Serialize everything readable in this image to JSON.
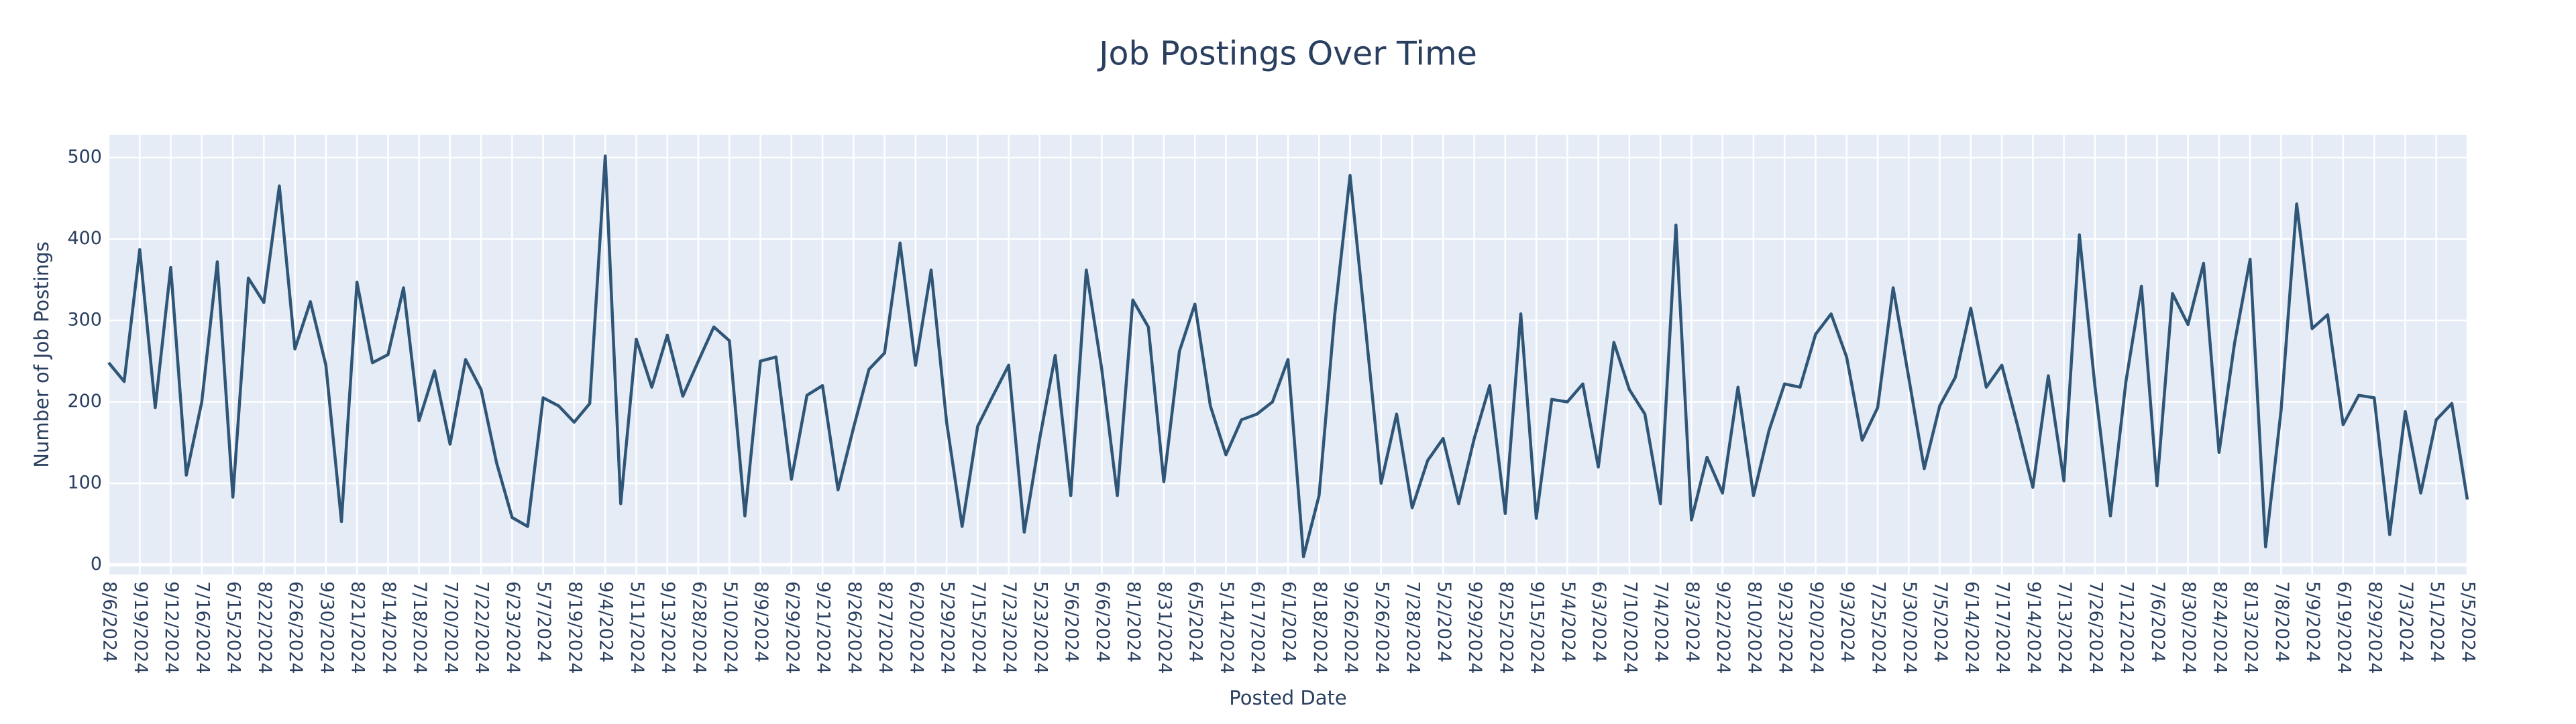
{
  "chart_data": {
    "type": "line",
    "title": "Job Postings Over Time",
    "x_label": "Posted Date",
    "y_label": "Number of Job Postings",
    "color": "#2f5577",
    "grid": true,
    "categories": [
      "8/6/2024",
      null,
      "9/19/2024",
      null,
      "9/12/2024",
      null,
      "7/16/2024",
      null,
      "6/15/2024",
      null,
      "8/22/2024",
      null,
      "6/26/2024",
      null,
      "9/30/2024",
      null,
      "8/21/2024",
      null,
      "8/14/2024",
      null,
      "7/18/2024",
      null,
      "7/20/2024",
      null,
      "7/22/2024",
      null,
      "6/23/2024",
      null,
      "5/7/2024",
      null,
      "8/19/2024",
      null,
      "9/4/2024",
      null,
      "5/11/2024",
      null,
      "9/13/2024",
      null,
      "6/28/2024",
      null,
      "5/10/2024",
      null,
      "8/9/2024",
      null,
      "6/29/2024",
      null,
      "9/21/2024",
      null,
      "8/26/2024",
      null,
      "8/27/2024",
      null,
      "6/20/2024",
      null,
      "5/29/2024",
      null,
      "7/15/2024",
      null,
      "7/23/2024",
      null,
      "5/23/2024",
      null,
      "5/6/2024",
      null,
      "6/6/2024",
      null,
      "8/1/2024",
      null,
      "8/31/2024",
      null,
      "6/5/2024",
      null,
      "5/14/2024",
      null,
      "6/17/2024",
      null,
      "6/1/2024",
      null,
      "8/18/2024",
      null,
      "9/26/2024",
      null,
      "5/26/2024",
      null,
      "7/28/2024",
      null,
      "5/2/2024",
      null,
      "9/29/2024",
      null,
      "8/25/2024",
      null,
      "9/15/2024",
      null,
      "5/4/2024",
      null,
      "6/3/2024",
      null,
      "7/10/2024",
      null,
      "7/4/2024",
      null,
      "8/3/2024",
      null,
      "9/22/2024",
      null,
      "8/10/2024",
      null,
      "9/23/2024",
      null,
      "9/20/2024",
      null,
      "9/3/2024",
      null,
      "7/25/2024",
      null,
      "5/30/2024",
      null,
      "7/5/2024",
      null,
      "6/14/2024",
      null,
      "7/17/2024",
      null,
      "9/14/2024",
      null,
      "7/13/2024",
      null,
      "7/26/2024",
      null,
      "7/12/2024",
      null,
      "7/6/2024",
      null,
      "8/30/2024",
      null,
      "8/24/2024",
      null,
      "8/13/2024",
      null,
      "7/8/2024",
      null,
      "5/9/2024",
      null,
      "6/19/2024",
      null,
      "8/29/2024",
      null,
      "7/3/2024",
      null,
      "5/1/2024",
      null,
      "5/5/2024"
    ],
    "values": [
      248,
      225,
      387,
      193,
      365,
      110,
      200,
      372,
      83,
      352,
      322,
      465,
      265,
      323,
      245,
      53,
      347,
      248,
      258,
      340,
      177,
      238,
      148,
      252,
      215,
      125,
      58,
      47,
      205,
      195,
      175,
      198,
      502,
      75,
      277,
      218,
      282,
      207,
      250,
      292,
      275,
      60,
      250,
      255,
      105,
      208,
      220,
      92,
      168,
      240,
      260,
      395,
      245,
      362,
      175,
      47,
      170,
      208,
      245,
      40,
      155,
      257,
      85,
      362,
      240,
      85,
      325,
      292,
      102,
      262,
      320,
      195,
      135,
      178,
      185,
      200,
      252,
      10,
      85,
      305,
      478,
      290,
      100,
      185,
      70,
      128,
      155,
      75,
      155,
      220,
      63,
      308,
      57,
      203,
      200,
      222,
      120,
      273,
      215,
      185,
      75,
      417,
      55,
      132,
      88,
      218,
      85,
      165,
      222,
      218,
      283,
      308,
      255,
      153,
      193,
      340,
      230,
      118,
      195,
      230,
      315,
      218,
      245,
      172,
      95,
      232,
      103,
      405,
      220,
      60,
      225,
      342,
      97,
      333,
      295,
      370,
      138,
      272,
      375,
      22,
      190,
      443,
      290,
      307,
      172,
      208,
      205,
      37,
      188,
      88,
      178,
      198,
      80
    ],
    "ylim": [
      -12,
      528
    ],
    "yticks": [
      0,
      100,
      200,
      300,
      400,
      500
    ]
  }
}
